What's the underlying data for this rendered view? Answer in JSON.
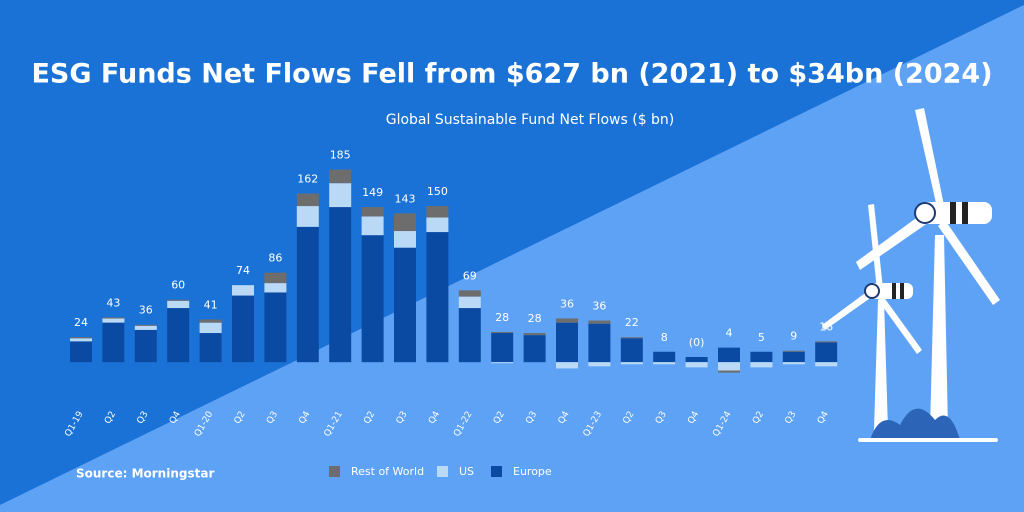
{
  "chart_data": {
    "type": "stacked_bar",
    "title": "ESG Funds Net Flows Fell from $627 bn (2021) to $34bn (2024)",
    "subtitle": "Global Sustainable Fund Net Flows ($ bn)",
    "source": "Source: Morningstar",
    "categories": [
      "Q1-19",
      "Q2",
      "Q3",
      "Q4",
      "Q1-20",
      "Q2",
      "Q3",
      "Q4",
      "Q1-21",
      "Q2",
      "Q3",
      "Q4",
      "Q1-22",
      "Q2",
      "Q3",
      "Q4",
      "Q1-23",
      "Q2",
      "Q3",
      "Q4",
      "Q1-24",
      "Q2",
      "Q3",
      "Q4"
    ],
    "series": [
      {
        "name": "Europe",
        "color": "#0a4aa3",
        "values": [
          20,
          38,
          31,
          52,
          28,
          64,
          67,
          130,
          149,
          122,
          110,
          125,
          52,
          28,
          26,
          38,
          37,
          23,
          10,
          5,
          14,
          10,
          10,
          19
        ]
      },
      {
        "name": "US",
        "color": "#b9d9f6",
        "values": [
          3,
          4,
          4,
          7,
          10,
          10,
          9,
          20,
          23,
          18,
          16,
          14,
          11,
          -1,
          0,
          -6,
          -4,
          -2,
          -2,
          -5,
          -8,
          -5,
          -2,
          -4
        ]
      },
      {
        "name": "Rest of World",
        "color": "#6d6d6d",
        "values": [
          1,
          1,
          1,
          1,
          3,
          0,
          10,
          12,
          13,
          9,
          17,
          11,
          6,
          1,
          2,
          4,
          3,
          1,
          0,
          0,
          -2,
          0,
          1,
          1
        ]
      }
    ],
    "totals": [
      24,
      43,
      36,
      60,
      41,
      74,
      86,
      162,
      185,
      149,
      143,
      150,
      69,
      28,
      28,
      36,
      36,
      22,
      8,
      {
        "value": 0,
        "label": "(0)"
      },
      4,
      5,
      9,
      16
    ],
    "ylim": [
      -20,
      200
    ]
  }
}
